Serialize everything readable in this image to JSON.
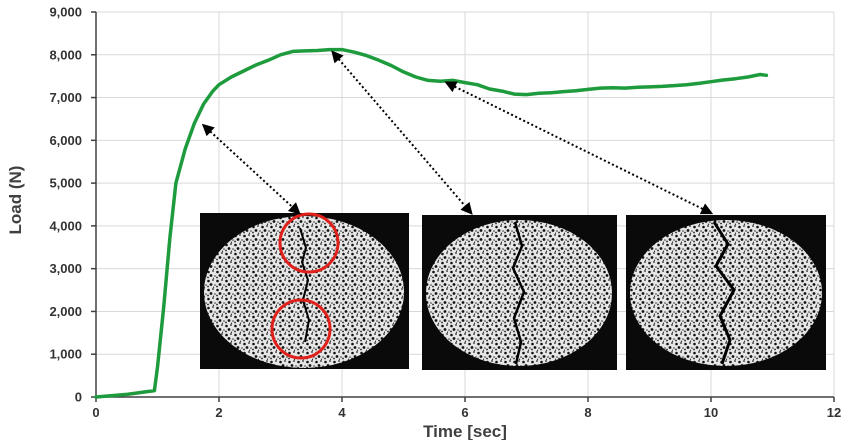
{
  "chart_data": {
    "type": "line",
    "xlabel": "Time [sec]",
    "ylabel": "Load (N)",
    "xlim": [
      0,
      12
    ],
    "ylim": [
      0,
      9000
    ],
    "x_ticks": [
      "0",
      "2",
      "4",
      "6",
      "8",
      "10",
      "12"
    ],
    "y_ticks": [
      "0",
      "1,000",
      "2,000",
      "3,000",
      "4,000",
      "5,000",
      "6,000",
      "7,000",
      "8,000",
      "9,000"
    ],
    "grid": true,
    "colors": {
      "series": "#1e9b3c",
      "callout": "#000000",
      "crack_marker": "#e0201a"
    },
    "series": [
      {
        "x": [
          0,
          0.5,
          0.95,
          1.0,
          1.1,
          1.2,
          1.3,
          1.45,
          1.6,
          1.75,
          1.9,
          2.0,
          2.2,
          2.4,
          2.6,
          2.8,
          3.0,
          3.2,
          3.4,
          3.6,
          3.8,
          4.0,
          4.2,
          4.4,
          4.6,
          4.8,
          5.0,
          5.2,
          5.4,
          5.6,
          5.8,
          6.0,
          6.2,
          6.4,
          6.6,
          6.8,
          7.0,
          7.2,
          7.4,
          7.6,
          7.8,
          8.0,
          8.2,
          8.4,
          8.6,
          8.8,
          9.0,
          9.2,
          9.4,
          9.6,
          9.8,
          10.0,
          10.2,
          10.4,
          10.6,
          10.8,
          10.9
        ],
        "values": [
          0,
          60,
          150,
          700,
          2100,
          3700,
          5000,
          5800,
          6400,
          6850,
          7150,
          7300,
          7480,
          7620,
          7760,
          7870,
          8000,
          8080,
          8090,
          8100,
          8120,
          8120,
          8060,
          7980,
          7870,
          7750,
          7600,
          7480,
          7400,
          7380,
          7400,
          7350,
          7300,
          7200,
          7150,
          7080,
          7070,
          7100,
          7110,
          7140,
          7160,
          7190,
          7220,
          7230,
          7220,
          7240,
          7250,
          7260,
          7280,
          7300,
          7330,
          7370,
          7410,
          7440,
          7480,
          7540,
          7520
        ]
      }
    ],
    "annotations": [
      {
        "type": "callout-arrow",
        "from_x": 1.75,
        "from_y": 6350,
        "to_x": 3.3,
        "to_y": 4300
      },
      {
        "type": "callout-arrow",
        "from_x": 3.85,
        "from_y": 8060,
        "to_x": 6.1,
        "to_y": 4300
      },
      {
        "type": "callout-arrow",
        "from_x": 5.7,
        "from_y": 7350,
        "to_x": 10.0,
        "to_y": 4300
      }
    ],
    "inset_images": [
      {
        "description": "specimen crack image",
        "crack_markers": 2
      },
      {
        "description": "specimen crack image",
        "crack_markers": 0
      },
      {
        "description": "specimen crack image",
        "crack_markers": 0
      }
    ]
  }
}
